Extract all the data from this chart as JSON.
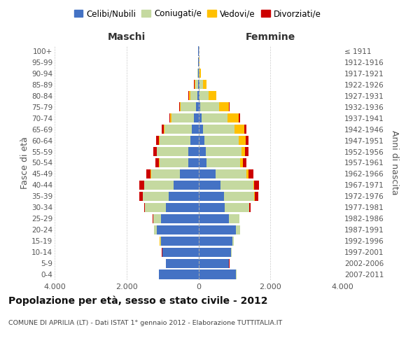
{
  "age_groups": [
    "0-4",
    "5-9",
    "10-14",
    "15-19",
    "20-24",
    "25-29",
    "30-34",
    "35-39",
    "40-44",
    "45-49",
    "50-54",
    "55-59",
    "60-64",
    "65-69",
    "70-74",
    "75-79",
    "80-84",
    "85-89",
    "90-94",
    "95-99",
    "100+"
  ],
  "birth_years": [
    "2007-2011",
    "2002-2006",
    "1997-2001",
    "1992-1996",
    "1987-1991",
    "1982-1986",
    "1977-1981",
    "1972-1976",
    "1967-1971",
    "1962-1966",
    "1957-1961",
    "1952-1956",
    "1947-1951",
    "1942-1946",
    "1937-1941",
    "1932-1936",
    "1927-1931",
    "1922-1926",
    "1917-1921",
    "1912-1916",
    "≤ 1911"
  ],
  "maschi": {
    "celibi": [
      1100,
      900,
      1000,
      1050,
      1150,
      1050,
      900,
      820,
      700,
      520,
      280,
      280,
      220,
      180,
      120,
      60,
      30,
      15,
      8,
      4,
      2
    ],
    "coniugati": [
      5,
      5,
      10,
      20,
      80,
      210,
      580,
      720,
      810,
      800,
      810,
      870,
      860,
      760,
      620,
      430,
      200,
      80,
      20,
      5,
      2
    ],
    "vedovi": [
      1,
      1,
      1,
      2,
      2,
      3,
      3,
      5,
      5,
      5,
      10,
      10,
      20,
      30,
      40,
      30,
      40,
      20,
      8,
      3,
      1
    ],
    "divorziati": [
      1,
      1,
      2,
      5,
      5,
      20,
      30,
      100,
      130,
      130,
      100,
      100,
      80,
      50,
      30,
      10,
      5,
      2,
      1,
      0,
      0
    ]
  },
  "femmine": {
    "nubili": [
      1050,
      850,
      900,
      950,
      1050,
      850,
      730,
      720,
      620,
      480,
      230,
      210,
      160,
      120,
      80,
      50,
      30,
      20,
      8,
      4,
      2
    ],
    "coniugate": [
      5,
      5,
      15,
      30,
      100,
      280,
      680,
      830,
      900,
      860,
      920,
      990,
      960,
      880,
      720,
      520,
      260,
      100,
      25,
      8,
      3
    ],
    "vedove": [
      1,
      1,
      2,
      3,
      5,
      5,
      10,
      20,
      30,
      50,
      80,
      100,
      200,
      280,
      320,
      280,
      200,
      100,
      30,
      8,
      2
    ],
    "divorziate": [
      1,
      1,
      2,
      3,
      5,
      10,
      30,
      100,
      140,
      130,
      100,
      100,
      80,
      50,
      30,
      10,
      5,
      3,
      1,
      0,
      0
    ]
  },
  "colors": {
    "celibi": "#4472c4",
    "coniugati": "#c5d9a0",
    "vedovi": "#ffc000",
    "divorziati": "#cc0000"
  },
  "legend_labels": [
    "Celibi/Nubili",
    "Coniugati/e",
    "Vedovi/e",
    "Divorziati/e"
  ],
  "title": "Popolazione per età, sesso e stato civile - 2012",
  "subtitle": "COMUNE DI APRILIA (LT) - Dati ISTAT 1° gennaio 2012 - Elaborazione TUTTITALIA.IT",
  "ylabel_left": "Fasce di età",
  "ylabel_right": "Anni di nascita",
  "xlabel_left": "Maschi",
  "xlabel_right": "Femmine",
  "xlim": 4000,
  "background_color": "#ffffff",
  "grid_color": "#cccccc"
}
